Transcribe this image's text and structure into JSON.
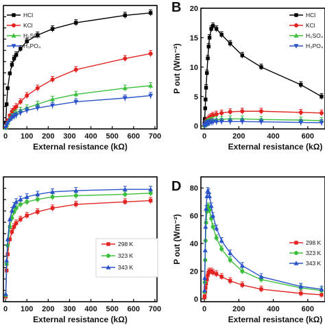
{
  "chart_data": [
    {
      "panel": "",
      "type": "line",
      "xlabel": "External resistance (kΩ)",
      "ylabel": "",
      "xlim": [
        -10,
        710
      ],
      "ylim": [
        0,
        1
      ],
      "x_ticks": [
        "0",
        "100",
        "200",
        "300",
        "400",
        "500",
        "600",
        "700"
      ],
      "x": [
        1,
        5,
        10,
        20,
        30,
        40,
        50,
        70,
        100,
        150,
        220,
        330,
        560,
        680
      ],
      "error_bars": true,
      "series": [
        {
          "name": "HCl",
          "color": "#000000",
          "marker": "square",
          "values": [
            0.05,
            0.2,
            0.33,
            0.45,
            0.52,
            0.57,
            0.6,
            0.65,
            0.71,
            0.76,
            0.81,
            0.86,
            0.92,
            0.94
          ]
        },
        {
          "name": "KCl",
          "color": "#e32222",
          "marker": "circle",
          "values": [
            0.01,
            0.04,
            0.07,
            0.11,
            0.14,
            0.16,
            0.18,
            0.22,
            0.27,
            0.33,
            0.4,
            0.48,
            0.57,
            0.61
          ]
        },
        {
          "name": "H₂SO₄",
          "color": "#3bbf3b",
          "marker": "triangle-up",
          "values": [
            0.01,
            0.03,
            0.05,
            0.08,
            0.1,
            0.12,
            0.13,
            0.15,
            0.17,
            0.2,
            0.24,
            0.28,
            0.33,
            0.35
          ]
        },
        {
          "name": "H₃PO₄",
          "color": "#2a52c9",
          "marker": "triangle-down",
          "values": [
            0.01,
            0.03,
            0.05,
            0.07,
            0.09,
            0.1,
            0.11,
            0.13,
            0.15,
            0.17,
            0.19,
            0.22,
            0.25,
            0.27
          ]
        }
      ]
    },
    {
      "panel": "B",
      "type": "line",
      "xlabel": "External resistance (kΩ)",
      "ylabel": "P out (Wm⁻²)",
      "xlim": [
        -20,
        700
      ],
      "ylim": [
        -0.5,
        20
      ],
      "x_ticks": [
        "0",
        "200",
        "400",
        "600"
      ],
      "y_ticks": [
        "0",
        "5",
        "10",
        "15",
        "20"
      ],
      "x": [
        1,
        2,
        5,
        7,
        10,
        15,
        20,
        25,
        30,
        40,
        50,
        70,
        100,
        150,
        220,
        330,
        560,
        680
      ],
      "error_bars": true,
      "series": [
        {
          "name": "HCl",
          "color": "#000000",
          "marker": "square",
          "values": [
            0.5,
            1.2,
            3.0,
            4.5,
            6.5,
            9.0,
            11.5,
            13.5,
            15.0,
            16.5,
            17.0,
            16.5,
            15.5,
            14.0,
            12.0,
            10.0,
            7.0,
            5.0
          ]
        },
        {
          "name": "KCl",
          "color": "#e32222",
          "marker": "circle",
          "values": [
            0.05,
            0.1,
            0.3,
            0.4,
            0.6,
            0.8,
            1.0,
            1.2,
            1.4,
            1.6,
            1.8,
            2.0,
            2.2,
            2.4,
            2.5,
            2.5,
            2.3,
            2.2
          ]
        },
        {
          "name": "H₂SO₄",
          "color": "#3bbf3b",
          "marker": "triangle-up",
          "values": [
            0.05,
            0.1,
            0.2,
            0.3,
            0.4,
            0.5,
            0.6,
            0.7,
            0.8,
            0.9,
            1.0,
            1.1,
            1.15,
            1.2,
            1.2,
            1.1,
            1.0,
            0.9
          ]
        },
        {
          "name": "H₃PO₄",
          "color": "#2a52c9",
          "marker": "triangle-down",
          "values": [
            0.05,
            0.1,
            0.2,
            0.25,
            0.3,
            0.4,
            0.45,
            0.5,
            0.55,
            0.6,
            0.65,
            0.7,
            0.75,
            0.75,
            0.75,
            0.7,
            0.6,
            0.55
          ]
        }
      ]
    },
    {
      "panel": "",
      "type": "line",
      "xlabel": "External resistance (kΩ)",
      "ylabel": "",
      "xlim": [
        -10,
        710
      ],
      "ylim": [
        0,
        1
      ],
      "x_ticks": [
        "0",
        "100",
        "200",
        "300",
        "400",
        "500",
        "600",
        "700"
      ],
      "x": [
        1,
        5,
        10,
        20,
        30,
        40,
        50,
        70,
        100,
        150,
        220,
        330,
        560,
        680
      ],
      "error_bars": true,
      "series": [
        {
          "name": "298 K",
          "color": "#e32222",
          "marker": "square",
          "values": [
            0.04,
            0.25,
            0.38,
            0.5,
            0.56,
            0.6,
            0.63,
            0.66,
            0.69,
            0.72,
            0.75,
            0.78,
            0.8,
            0.81
          ]
        },
        {
          "name": "323 K",
          "color": "#3bbf3b",
          "marker": "circle",
          "values": [
            0.05,
            0.3,
            0.45,
            0.6,
            0.67,
            0.72,
            0.75,
            0.78,
            0.8,
            0.82,
            0.84,
            0.85,
            0.86,
            0.87
          ]
        },
        {
          "name": "343 K",
          "color": "#2a52c9",
          "marker": "triangle-up",
          "values": [
            0.06,
            0.33,
            0.5,
            0.66,
            0.73,
            0.77,
            0.8,
            0.82,
            0.84,
            0.86,
            0.88,
            0.89,
            0.9,
            0.9
          ]
        }
      ]
    },
    {
      "panel": "D",
      "type": "line",
      "xlabel": "External resistance (kΩ)",
      "ylabel": "P out (Wm⁻²)",
      "xlim": [
        -20,
        700
      ],
      "ylim": [
        -2,
        88
      ],
      "x_ticks": [
        "0",
        "200",
        "400",
        "600"
      ],
      "y_ticks": [
        "0",
        "20",
        "40",
        "60",
        "80"
      ],
      "x": [
        1,
        2,
        5,
        7,
        10,
        15,
        20,
        25,
        30,
        40,
        50,
        70,
        100,
        150,
        220,
        330,
        560,
        680
      ],
      "error_bars": true,
      "series": [
        {
          "name": "298 K",
          "color": "#e32222",
          "marker": "square",
          "values": [
            1,
            2,
            5,
            8,
            11,
            14,
            17,
            19,
            20,
            20,
            19,
            18,
            16,
            13,
            10,
            7,
            4,
            3
          ]
        },
        {
          "name": "323 K",
          "color": "#3bbf3b",
          "marker": "circle",
          "values": [
            5,
            12,
            28,
            42,
            55,
            63,
            67,
            66,
            64,
            58,
            52,
            44,
            36,
            28,
            20,
            14,
            8,
            6
          ]
        },
        {
          "name": "343 K",
          "color": "#2a52c9",
          "marker": "triangle-up",
          "values": [
            6,
            15,
            35,
            52,
            65,
            74,
            78,
            77,
            74,
            67,
            60,
            51,
            42,
            33,
            24,
            16,
            9,
            7
          ]
        }
      ]
    }
  ]
}
